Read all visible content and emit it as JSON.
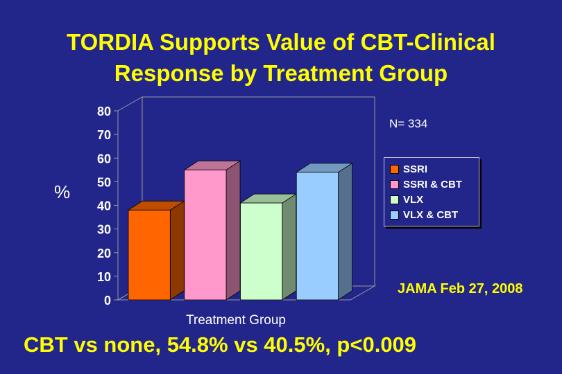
{
  "slide": {
    "title_line1": "TORDIA Supports Value of CBT-Clinical",
    "title_line2": "Response by Treatment Group",
    "n_label": "N= 334",
    "source": "JAMA Feb 27, 2008",
    "footnote": "CBT vs none, 54.8% vs 40.5%,  p<0.009"
  },
  "chart_data": {
    "type": "bar",
    "style": "3d",
    "xlabel": "Treatment Group",
    "ylabel": "%",
    "ylim": [
      0,
      80
    ],
    "yticks": [
      0,
      10,
      20,
      30,
      40,
      50,
      60,
      70,
      80
    ],
    "grid": false,
    "legend_position": "right",
    "series": [
      {
        "name": "SSRI",
        "values": [
          38
        ],
        "color": "#ff6600"
      },
      {
        "name": "SSRI & CBT",
        "values": [
          55
        ],
        "color": "#ff99cc"
      },
      {
        "name": "VLX",
        "values": [
          41
        ],
        "color": "#ccffcc"
      },
      {
        "name": "VLX & CBT",
        "values": [
          54
        ],
        "color": "#99ccff"
      }
    ]
  }
}
